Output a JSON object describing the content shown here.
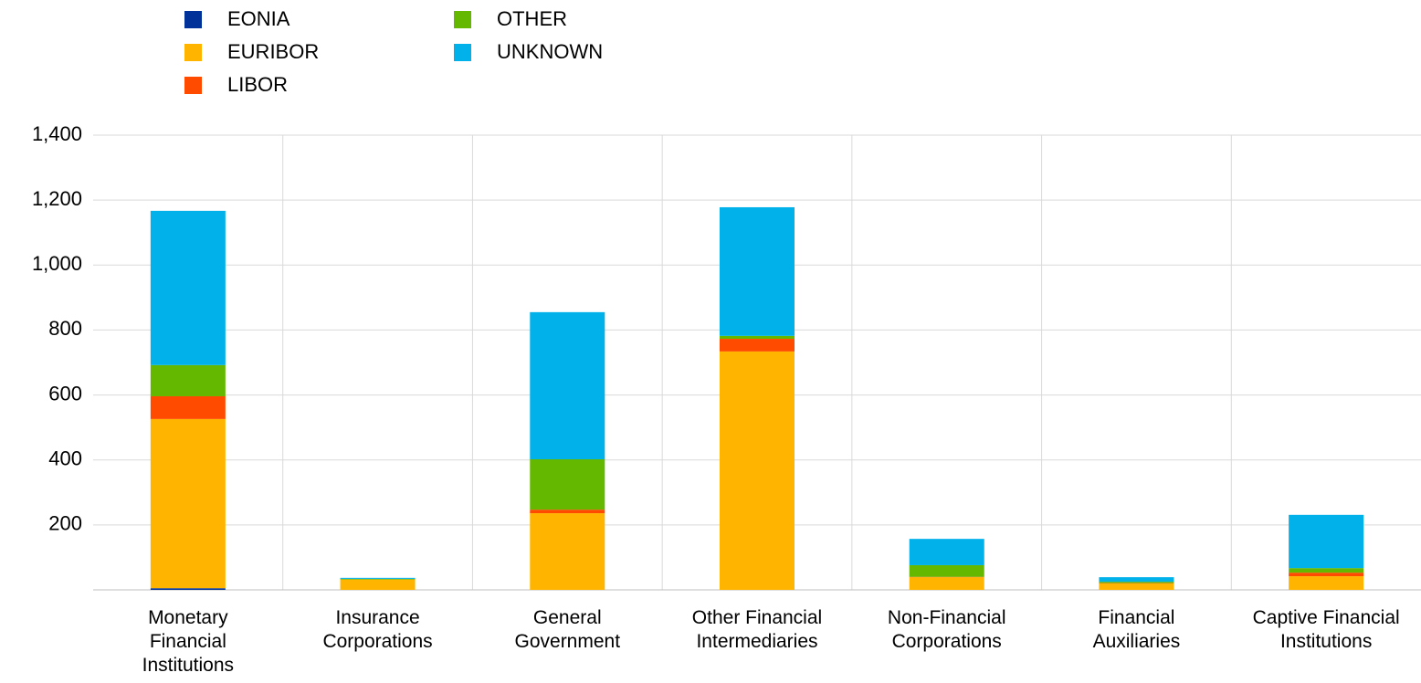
{
  "chart_data": {
    "type": "stacked_bar",
    "categories": [
      "Monetary Financial Institutions",
      "Insurance Corporations",
      "General Government",
      "Other Financial Intermediaries",
      "Non-Financial Corporations",
      "Financial Auxiliaries",
      "Captive Financial Institutions"
    ],
    "series": [
      {
        "name": "EONIA",
        "color": "#003299",
        "values": [
          5,
          0,
          0,
          0,
          0,
          0,
          0
        ]
      },
      {
        "name": "EURIBOR",
        "color": "#ffb400",
        "values": [
          521,
          32,
          236,
          734,
          39,
          20,
          42
        ]
      },
      {
        "name": "LIBOR",
        "color": "#ff4b00",
        "values": [
          70,
          0,
          11,
          39,
          1,
          1,
          11
        ]
      },
      {
        "name": "OTHER",
        "color": "#65b800",
        "values": [
          96,
          2,
          155,
          9,
          36,
          4,
          14
        ]
      },
      {
        "name": "UNKNOWN",
        "color": "#00b1ea",
        "values": [
          475,
          3,
          453,
          396,
          81,
          14,
          164
        ]
      }
    ],
    "ylim": [
      0,
      1400
    ],
    "yticks": [
      200,
      400,
      600,
      800,
      {
        "value": 1000,
        "label": "1,000"
      },
      {
        "value": 1200,
        "label": "1,200"
      },
      {
        "value": 1400,
        "label": "1,400"
      }
    ],
    "grid": true
  }
}
